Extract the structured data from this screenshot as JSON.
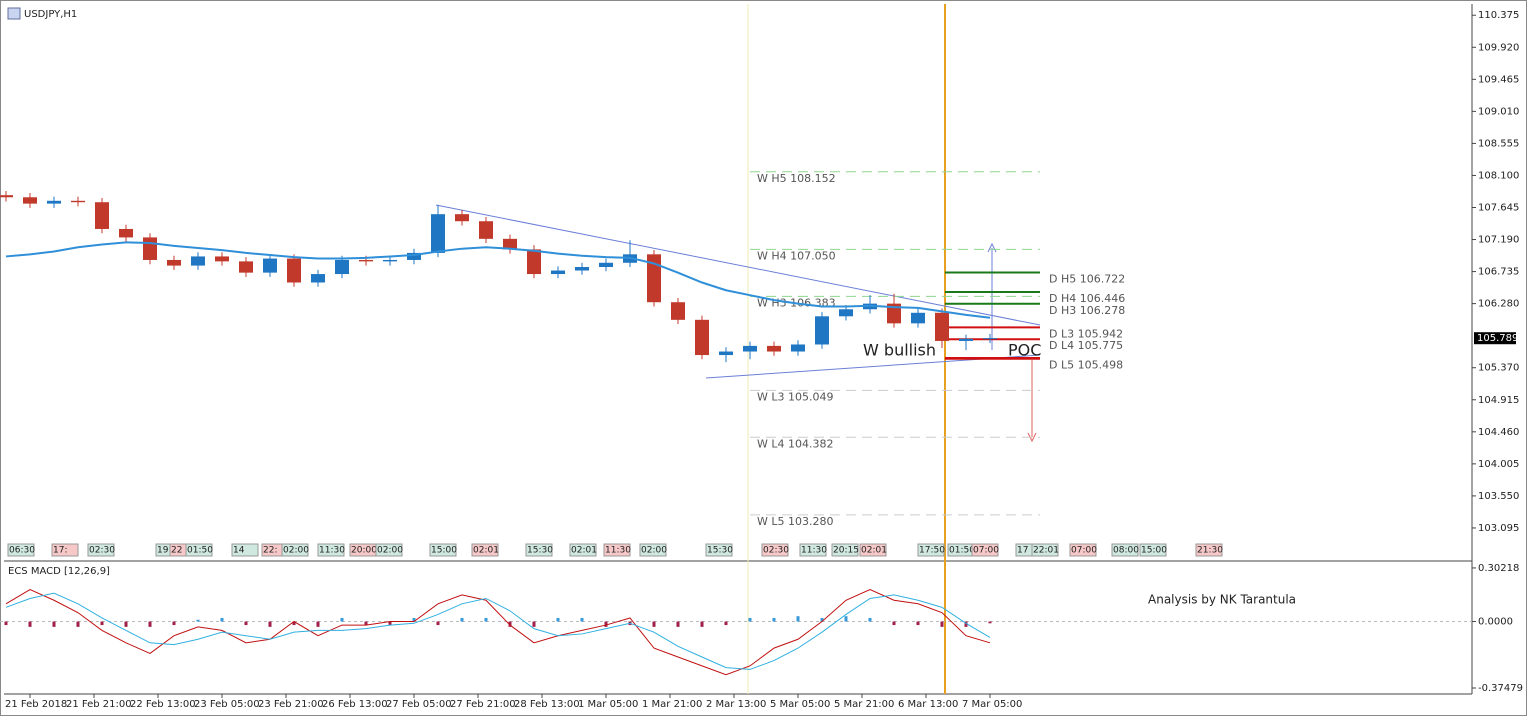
{
  "chart_data": {
    "type": "candlestick",
    "title": "USDJPY,H1",
    "up_color": "#1f77c4",
    "down_color": "#c0392b",
    "ma_color": "#2f8fd8",
    "xlim": [
      -0.5,
      367.5
    ],
    "xticks": [
      {
        "value": 7,
        "label": "21 Feb 2018"
      },
      {
        "value": 23,
        "label": "21 Feb 21:00"
      },
      {
        "value": 39,
        "label": "22 Feb 13:00"
      },
      {
        "value": 55,
        "label": "23 Feb 05:00"
      },
      {
        "value": 71,
        "label": "23 Feb 21:00"
      },
      {
        "value": 87,
        "label": "26 Feb 13:00"
      },
      {
        "value": 103,
        "label": "27 Feb 05:00"
      },
      {
        "value": 119,
        "label": "27 Feb 21:00"
      },
      {
        "value": 135,
        "label": "28 Feb 13:00"
      },
      {
        "value": 151,
        "label": "1 Mar 05:00"
      },
      {
        "value": 167,
        "label": "1 Mar 21:00"
      },
      {
        "value": 183,
        "label": "2 Mar 13:00"
      },
      {
        "value": 199,
        "label": "5 Mar 05:00"
      },
      {
        "value": 215,
        "label": "5 Mar 21:00"
      },
      {
        "value": 231,
        "label": "6 Mar 13:00"
      },
      {
        "value": 247,
        "label": "7 Mar 05:00"
      }
    ],
    "ylim": [
      102.64,
      110.52
    ],
    "yticks": [
      110.375,
      {
        "value": 109.92,
        "label": "109.920"
      },
      109.465,
      {
        "value": 109.01,
        "label": "109.010"
      },
      108.555,
      {
        "value": 108.1,
        "label": "108.100"
      },
      107.645,
      {
        "value": 107.19,
        "label": "107.190"
      },
      106.735,
      {
        "value": 106.28,
        "label": "106.280"
      },
      {
        "value": 105.37,
        "label": "105.370"
      },
      104.915,
      {
        "value": 104.46,
        "label": "104.460"
      },
      104.005,
      {
        "value": 103.55,
        "label": "103.550"
      },
      103.095
    ],
    "current_price": 105.789,
    "x": [
      1,
      7,
      13,
      19,
      25,
      31,
      37,
      43,
      49,
      55,
      61,
      67,
      73,
      79,
      85,
      91,
      97,
      103,
      109,
      115,
      121,
      127,
      133,
      139,
      145,
      151,
      157,
      163,
      169,
      175,
      181,
      187,
      193,
      199,
      205,
      211,
      217,
      223,
      229,
      235,
      241,
      247
    ],
    "open": [
      107.82,
      107.79,
      107.7,
      107.74,
      107.72,
      107.34,
      107.22,
      106.9,
      106.82,
      106.95,
      106.88,
      106.72,
      106.92,
      106.58,
      106.7,
      106.9,
      106.88,
      106.9,
      107.0,
      107.55,
      107.45,
      107.2,
      107.05,
      106.7,
      106.75,
      106.8,
      106.86,
      106.98,
      106.3,
      106.05,
      105.55,
      105.6,
      105.68,
      105.6,
      105.7,
      106.1,
      106.2,
      106.28,
      106.0,
      106.15,
      105.75,
      105.78
    ],
    "high": [
      107.88,
      107.85,
      107.8,
      107.8,
      107.78,
      107.4,
      107.28,
      106.96,
      107.01,
      107.01,
      106.94,
      106.98,
      106.98,
      106.76,
      106.96,
      106.96,
      106.96,
      107.06,
      107.68,
      107.61,
      107.51,
      107.26,
      107.11,
      106.81,
      106.86,
      106.92,
      107.18,
      107.04,
      106.36,
      106.11,
      105.66,
      105.74,
      105.74,
      105.76,
      106.16,
      106.26,
      106.4,
      106.42,
      106.21,
      106.21,
      105.84,
      105.85
    ],
    "low": [
      107.73,
      107.64,
      107.64,
      107.66,
      107.28,
      107.16,
      106.84,
      106.76,
      106.76,
      106.82,
      106.66,
      106.66,
      106.52,
      106.52,
      106.64,
      106.82,
      106.82,
      106.84,
      106.94,
      107.39,
      107.14,
      106.99,
      106.64,
      106.64,
      106.69,
      106.74,
      106.8,
      106.24,
      105.99,
      105.49,
      105.45,
      105.49,
      105.54,
      105.54,
      105.64,
      106.04,
      106.14,
      105.94,
      105.94,
      105.65,
      105.62,
      105.72
    ],
    "close": [
      107.79,
      107.7,
      107.74,
      107.72,
      107.34,
      107.22,
      106.9,
      106.82,
      106.95,
      106.88,
      106.72,
      106.92,
      106.58,
      106.7,
      106.9,
      106.88,
      106.9,
      107.0,
      107.55,
      107.45,
      107.2,
      107.05,
      106.7,
      106.75,
      106.8,
      106.86,
      106.98,
      106.3,
      106.05,
      105.55,
      105.6,
      105.68,
      105.6,
      105.7,
      106.1,
      106.2,
      106.28,
      106.0,
      106.15,
      105.75,
      105.78,
      105.79
    ],
    "ma": [
      106.95,
      106.98,
      107.02,
      107.08,
      107.12,
      107.15,
      107.14,
      107.1,
      107.07,
      107.04,
      107.0,
      106.97,
      106.94,
      106.92,
      106.92,
      106.93,
      106.95,
      106.97,
      107.02,
      107.06,
      107.08,
      107.06,
      107.03,
      106.99,
      106.96,
      106.94,
      106.93,
      106.85,
      106.72,
      106.58,
      106.47,
      106.4,
      106.33,
      106.28,
      106.24,
      106.24,
      106.25,
      106.23,
      106.22,
      106.17,
      106.12,
      106.08
    ],
    "w_levels": [
      {
        "value": 108.152,
        "label": "W  H5 108.152",
        "color": "#8fd68f"
      },
      {
        "value": 107.05,
        "label": "W  H4 107.050",
        "color": "#8fd68f"
      },
      {
        "value": 106.383,
        "label": "W  H3 106.383",
        "color": "#8fd68f"
      },
      {
        "value": 105.049,
        "label": "W  L3 105.049",
        "color": "#cccccc"
      },
      {
        "value": 104.382,
        "label": "W  L4 104.382",
        "color": "#cccccc"
      },
      {
        "value": 103.28,
        "label": "W  L5 103.280",
        "color": "#cccccc"
      }
    ],
    "d_levels": [
      {
        "value": 106.722,
        "label": "D  H5 106.722",
        "color": "#1a7a1a"
      },
      {
        "value": 106.446,
        "label": "D  H4 106.446",
        "color": "#1a7a1a"
      },
      {
        "value": 106.278,
        "label": "D  H3 106.278",
        "color": "#1a7a1a"
      },
      {
        "value": 105.942,
        "label": "D  L3 105.942",
        "color": "#d01010"
      },
      {
        "value": 105.775,
        "label": "D  L4 105.775",
        "color": "#d01010"
      },
      {
        "value": 105.498,
        "label": "D  L5 105.498",
        "color": "#d01010"
      }
    ],
    "annotations": [
      "W bullish",
      "POC"
    ],
    "session_labels": [
      "06:30",
      "17:",
      "02:30",
      "19",
      "22",
      "01:50",
      "14",
      "22:",
      "02:00",
      "11:30",
      "20:00",
      "02:00",
      "15:00",
      "02:01",
      "15:30",
      "02:01",
      "11:30",
      "02:00",
      "15:30",
      "02:30",
      "11:30",
      "20:15",
      "02:01",
      "17:50",
      "01:50",
      "07:00",
      "17",
      "22:01",
      "07:00",
      "08:00",
      "15:00",
      "21:30"
    ],
    "macd": {
      "title": "ECS MACD [12,26,9]",
      "note": "Analysis by NK Tarantula",
      "ylim": [
        -0.403,
        0.33
      ],
      "yticks": [
        0.30218,
        {
          "value": 0,
          "label": "0.0000"
        },
        -0.37479
      ],
      "hist_up_color": "#3a9ad9",
      "hist_down_color": "#a0204a",
      "macd_color": "#c01010",
      "signal_color": "#30b0e0",
      "histogram": [
        -0.02,
        -0.03,
        -0.03,
        -0.03,
        -0.02,
        -0.03,
        -0.03,
        -0.02,
        0.01,
        0.02,
        -0.02,
        -0.03,
        -0.02,
        -0.03,
        0.02,
        -0.02,
        -0.02,
        0.02,
        -0.02,
        0.02,
        0.02,
        -0.03,
        -0.03,
        0.02,
        0.02,
        -0.03,
        -0.02,
        -0.03,
        -0.03,
        -0.03,
        -0.02,
        0.02,
        0.02,
        0.03,
        0.02,
        0.03,
        0.02,
        -0.02,
        -0.02,
        -0.03,
        -0.03,
        -0.01
      ],
      "line": [
        0.1,
        0.18,
        0.12,
        0.05,
        -0.05,
        -0.12,
        -0.18,
        -0.08,
        -0.03,
        -0.05,
        -0.12,
        -0.1,
        0.0,
        -0.08,
        -0.02,
        -0.02,
        0.0,
        0.0,
        0.1,
        0.15,
        0.12,
        -0.02,
        -0.12,
        -0.08,
        -0.05,
        -0.02,
        0.02,
        -0.15,
        -0.2,
        -0.25,
        -0.3,
        -0.25,
        -0.15,
        -0.1,
        0.0,
        0.12,
        0.18,
        0.12,
        0.1,
        0.05,
        -0.08,
        -0.12
      ],
      "signal": [
        0.08,
        0.13,
        0.16,
        0.1,
        0.02,
        -0.05,
        -0.12,
        -0.13,
        -0.1,
        -0.06,
        -0.08,
        -0.1,
        -0.06,
        -0.05,
        -0.05,
        -0.04,
        -0.02,
        -0.01,
        0.04,
        0.1,
        0.13,
        0.06,
        -0.04,
        -0.08,
        -0.07,
        -0.04,
        -0.01,
        -0.06,
        -0.14,
        -0.2,
        -0.26,
        -0.27,
        -0.22,
        -0.15,
        -0.06,
        0.04,
        0.13,
        0.15,
        0.12,
        0.08,
        -0.01,
        -0.09
      ]
    }
  }
}
